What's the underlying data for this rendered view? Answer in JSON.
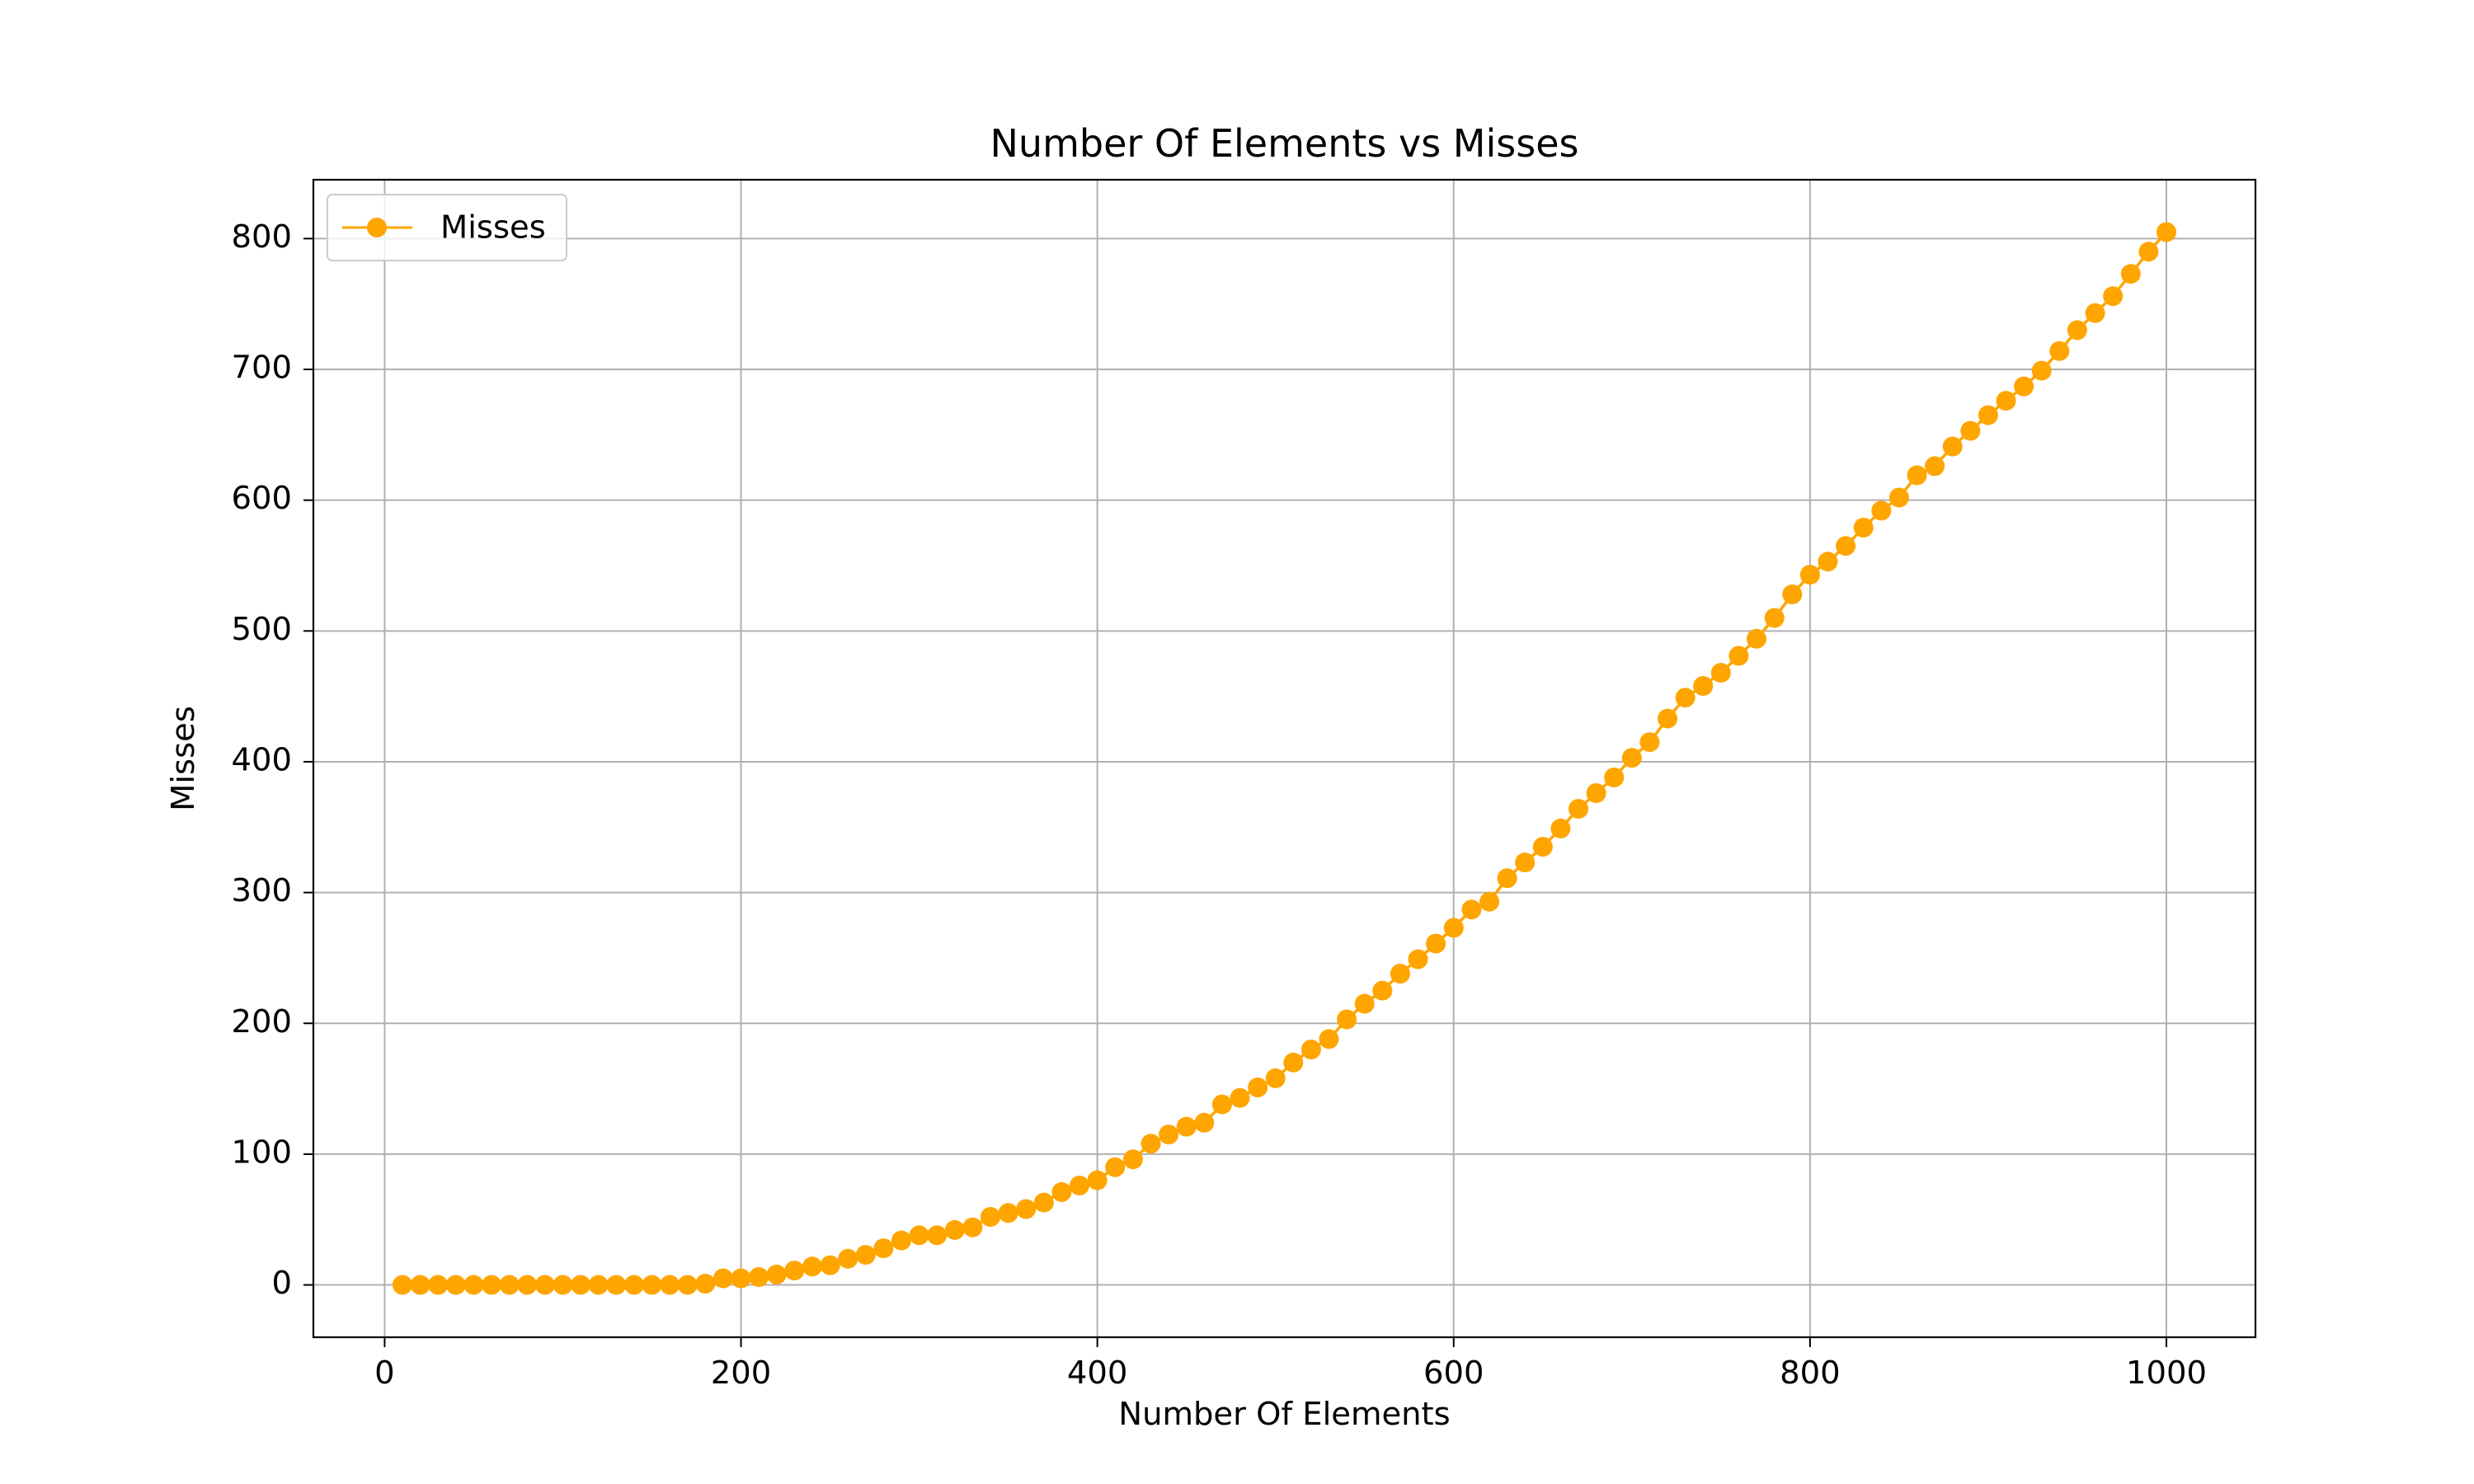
{
  "chart_data": {
    "type": "line",
    "title": "Number Of Elements vs Misses",
    "xlabel": "Number Of Elements",
    "ylabel": "Misses",
    "xlim": [
      -40,
      1050
    ],
    "ylim": [
      -40,
      845
    ],
    "xticks": [
      0,
      200,
      400,
      600,
      800,
      1000
    ],
    "yticks": [
      0,
      100,
      200,
      300,
      400,
      500,
      600,
      700,
      800
    ],
    "grid": true,
    "legend": "upper-left",
    "x": [
      10,
      20,
      30,
      40,
      50,
      60,
      70,
      80,
      90,
      100,
      110,
      120,
      130,
      140,
      150,
      160,
      170,
      180,
      190,
      200,
      210,
      220,
      230,
      240,
      250,
      260,
      270,
      280,
      290,
      300,
      310,
      320,
      330,
      340,
      350,
      360,
      370,
      380,
      390,
      400,
      410,
      420,
      430,
      440,
      450,
      460,
      470,
      480,
      490,
      500,
      510,
      520,
      530,
      540,
      550,
      560,
      570,
      580,
      590,
      600,
      610,
      620,
      630,
      640,
      650,
      660,
      670,
      680,
      690,
      700,
      710,
      720,
      730,
      740,
      750,
      760,
      770,
      780,
      790,
      800,
      810,
      820,
      830,
      840,
      850,
      860,
      870,
      880,
      890,
      900,
      910,
      920,
      930,
      940,
      950,
      960,
      970,
      980,
      990,
      1000
    ],
    "series": [
      {
        "name": "Misses",
        "color": "#ffa500",
        "marker": "circle",
        "values": [
          0,
          0,
          0,
          0,
          0,
          0,
          0,
          0,
          0,
          0,
          0,
          0,
          0,
          0,
          0,
          0,
          0,
          1,
          5,
          5,
          6,
          8,
          11,
          14,
          15,
          20,
          23,
          28,
          34,
          38,
          38,
          42,
          44,
          52,
          55,
          58,
          63,
          71,
          76,
          80,
          90,
          96,
          108,
          115,
          121,
          124,
          138,
          143,
          151,
          158,
          170,
          180,
          188,
          203,
          215,
          225,
          238,
          249,
          261,
          273,
          287,
          293,
          311,
          323,
          335,
          349,
          364,
          376,
          388,
          403,
          415,
          433,
          449,
          458,
          468,
          481,
          494,
          510,
          528,
          543,
          553,
          565,
          579,
          592,
          602,
          619,
          626,
          641,
          653,
          665,
          676,
          687,
          699,
          714,
          730,
          743,
          756,
          773,
          790,
          805
        ]
      }
    ]
  }
}
